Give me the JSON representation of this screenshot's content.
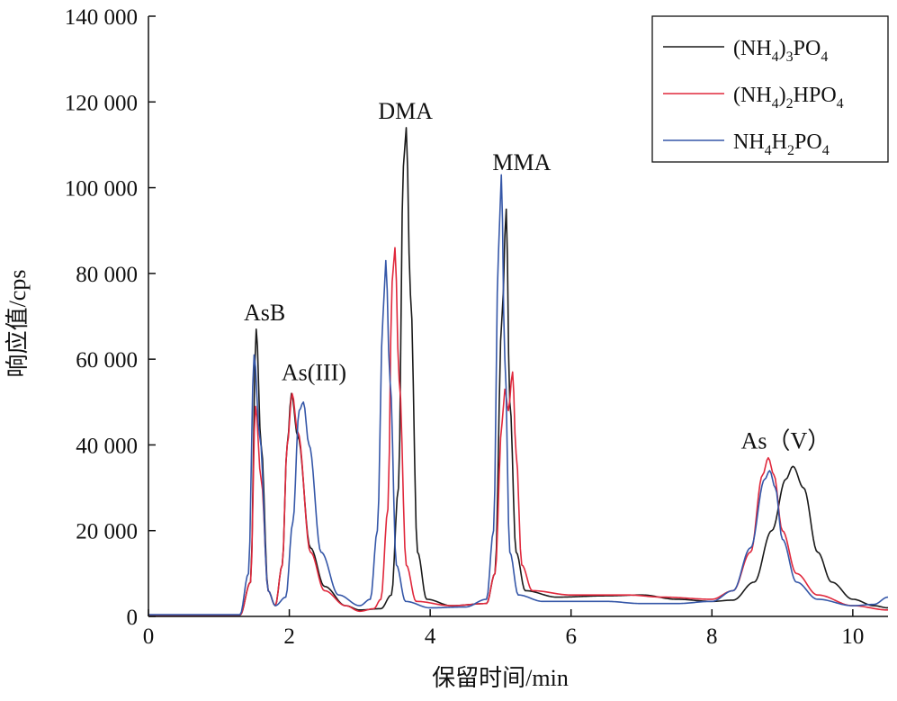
{
  "chart_data": {
    "type": "line",
    "xlabel": "保留时间/min",
    "ylabel": "响应值/cps",
    "xlim": [
      0,
      10.5
    ],
    "ylim": [
      0,
      140000
    ],
    "x_ticks": [
      "0",
      "2",
      "4",
      "6",
      "8",
      "10"
    ],
    "y_ticks": [
      "0",
      "20 000",
      "40 000",
      "60 000",
      "80 000",
      "100 000",
      "120 000",
      "140 000"
    ],
    "grid": false,
    "legend_position": "top-right",
    "annotations": [
      {
        "text": "AsB",
        "x": 1.65,
        "y": 67000
      },
      {
        "text": "As(III)",
        "x": 2.35,
        "y": 53000
      },
      {
        "text": "DMA",
        "x": 3.65,
        "y": 114000
      },
      {
        "text": "MMA",
        "x": 5.3,
        "y": 102000
      },
      {
        "text": "As（V）",
        "x": 9.05,
        "y": 37000
      }
    ],
    "series": [
      {
        "legend": {
          "parts": [
            {
              "t": "(NH"
            },
            {
              "t": "4",
              "sub": true
            },
            {
              "t": ")"
            },
            {
              "t": "3",
              "sub": true
            },
            {
              "t": "PO"
            },
            {
              "t": "4",
              "sub": true
            }
          ]
        },
        "color": "#1a1a1a",
        "points": [
          [
            0,
            300
          ],
          [
            1.3,
            300
          ],
          [
            1.45,
            8000
          ],
          [
            1.53,
            67000
          ],
          [
            1.6,
            40000
          ],
          [
            1.7,
            6000
          ],
          [
            1.8,
            2500
          ],
          [
            1.9,
            12000
          ],
          [
            1.97,
            40000
          ],
          [
            2.03,
            52000
          ],
          [
            2.12,
            42000
          ],
          [
            2.3,
            16000
          ],
          [
            2.5,
            7000
          ],
          [
            2.8,
            2500
          ],
          [
            3.0,
            1500
          ],
          [
            3.3,
            1800
          ],
          [
            3.45,
            5000
          ],
          [
            3.55,
            30000
          ],
          [
            3.62,
            105000
          ],
          [
            3.66,
            114000
          ],
          [
            3.72,
            75000
          ],
          [
            3.82,
            15000
          ],
          [
            3.95,
            4000
          ],
          [
            4.3,
            2500
          ],
          [
            4.8,
            3000
          ],
          [
            4.92,
            10000
          ],
          [
            5.02,
            70000
          ],
          [
            5.08,
            95000
          ],
          [
            5.13,
            50000
          ],
          [
            5.22,
            15000
          ],
          [
            5.35,
            6000
          ],
          [
            5.8,
            4500
          ],
          [
            6.5,
            4800
          ],
          [
            7.0,
            5000
          ],
          [
            7.5,
            4000
          ],
          [
            8.0,
            3500
          ],
          [
            8.3,
            3800
          ],
          [
            8.6,
            8000
          ],
          [
            8.85,
            20000
          ],
          [
            9.05,
            32000
          ],
          [
            9.15,
            35000
          ],
          [
            9.3,
            30000
          ],
          [
            9.5,
            15000
          ],
          [
            9.7,
            8000
          ],
          [
            10.0,
            4000
          ],
          [
            10.3,
            2500
          ],
          [
            10.5,
            2000
          ]
        ]
      },
      {
        "legend": {
          "parts": [
            {
              "t": "(NH"
            },
            {
              "t": "4",
              "sub": true
            },
            {
              "t": ")"
            },
            {
              "t": "2",
              "sub": true
            },
            {
              "t": "HPO"
            },
            {
              "t": "4",
              "sub": true
            }
          ]
        },
        "color": "#e0283c",
        "points": [
          [
            0,
            300
          ],
          [
            1.3,
            300
          ],
          [
            1.45,
            8000
          ],
          [
            1.52,
            49000
          ],
          [
            1.6,
            32000
          ],
          [
            1.7,
            6000
          ],
          [
            1.8,
            2500
          ],
          [
            1.9,
            12000
          ],
          [
            1.97,
            40000
          ],
          [
            2.04,
            52000
          ],
          [
            2.12,
            43000
          ],
          [
            2.3,
            15000
          ],
          [
            2.5,
            6000
          ],
          [
            2.8,
            2500
          ],
          [
            3.0,
            1200
          ],
          [
            3.2,
            1800
          ],
          [
            3.3,
            4000
          ],
          [
            3.4,
            25000
          ],
          [
            3.46,
            78000
          ],
          [
            3.5,
            86000
          ],
          [
            3.56,
            55000
          ],
          [
            3.66,
            12000
          ],
          [
            3.8,
            3500
          ],
          [
            4.3,
            2500
          ],
          [
            4.8,
            3000
          ],
          [
            4.92,
            10000
          ],
          [
            5.02,
            45000
          ],
          [
            5.06,
            53000
          ],
          [
            5.11,
            48000
          ],
          [
            5.17,
            57000
          ],
          [
            5.22,
            38000
          ],
          [
            5.3,
            12000
          ],
          [
            5.45,
            6000
          ],
          [
            6.0,
            5000
          ],
          [
            6.8,
            5000
          ],
          [
            7.3,
            4500
          ],
          [
            8.0,
            4000
          ],
          [
            8.3,
            6000
          ],
          [
            8.55,
            15000
          ],
          [
            8.72,
            33000
          ],
          [
            8.8,
            37000
          ],
          [
            8.88,
            33000
          ],
          [
            9.0,
            20000
          ],
          [
            9.2,
            10000
          ],
          [
            9.5,
            5000
          ],
          [
            10.0,
            2500
          ],
          [
            10.5,
            1500
          ]
        ]
      },
      {
        "legend": {
          "parts": [
            {
              "t": "NH"
            },
            {
              "t": "4",
              "sub": true
            },
            {
              "t": "H"
            },
            {
              "t": "2",
              "sub": true
            },
            {
              "t": "PO"
            },
            {
              "t": "4",
              "sub": true
            }
          ]
        },
        "color": "#3557a8",
        "points": [
          [
            0,
            400
          ],
          [
            1.3,
            400
          ],
          [
            1.42,
            10000
          ],
          [
            1.5,
            61000
          ],
          [
            1.58,
            42000
          ],
          [
            1.7,
            6000
          ],
          [
            1.8,
            2500
          ],
          [
            1.95,
            4500
          ],
          [
            2.05,
            22000
          ],
          [
            2.14,
            48000
          ],
          [
            2.2,
            50000
          ],
          [
            2.28,
            40000
          ],
          [
            2.45,
            15000
          ],
          [
            2.7,
            5000
          ],
          [
            3.0,
            2500
          ],
          [
            3.15,
            4000
          ],
          [
            3.25,
            20000
          ],
          [
            3.33,
            70000
          ],
          [
            3.37,
            83000
          ],
          [
            3.43,
            55000
          ],
          [
            3.52,
            12000
          ],
          [
            3.65,
            3500
          ],
          [
            4.0,
            2000
          ],
          [
            4.5,
            2200
          ],
          [
            4.8,
            4000
          ],
          [
            4.9,
            20000
          ],
          [
            4.97,
            85000
          ],
          [
            5.01,
            103000
          ],
          [
            5.06,
            60000
          ],
          [
            5.13,
            15000
          ],
          [
            5.25,
            5000
          ],
          [
            5.6,
            3500
          ],
          [
            6.5,
            3500
          ],
          [
            7.0,
            3000
          ],
          [
            7.5,
            3000
          ],
          [
            8.0,
            3500
          ],
          [
            8.3,
            6000
          ],
          [
            8.55,
            16000
          ],
          [
            8.75,
            32000
          ],
          [
            8.82,
            34000
          ],
          [
            8.9,
            30000
          ],
          [
            9.0,
            18000
          ],
          [
            9.2,
            8000
          ],
          [
            9.5,
            4000
          ],
          [
            10.0,
            2500
          ],
          [
            10.3,
            2800
          ],
          [
            10.5,
            4500
          ]
        ]
      }
    ]
  }
}
